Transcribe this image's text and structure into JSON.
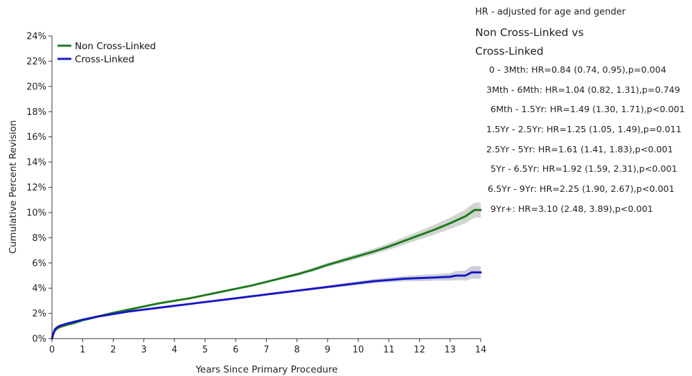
{
  "chart_data": {
    "type": "line",
    "xlabel": "Years Since Primary Procedure",
    "ylabel": "Cumulative Percent Revision",
    "xlim": [
      0,
      14
    ],
    "ylim": [
      0,
      24
    ],
    "x_ticks": [
      "0",
      "1",
      "2",
      "3",
      "4",
      "5",
      "6",
      "7",
      "8",
      "9",
      "10",
      "11",
      "12",
      "13",
      "14"
    ],
    "y_ticks": [
      "0%",
      "2%",
      "4%",
      "6%",
      "8%",
      "10%",
      "12%",
      "14%",
      "16%",
      "18%",
      "20%",
      "22%",
      "24%"
    ],
    "grid": false,
    "legend_position": "top-left",
    "series": [
      {
        "name": "Non Cross-Linked",
        "color": "#1e7a1e",
        "band_color": "#c9cfc9",
        "x": [
          0,
          0.05,
          0.1,
          0.2,
          0.3,
          0.5,
          0.75,
          1,
          1.5,
          2,
          2.5,
          3,
          3.5,
          4,
          4.5,
          5,
          5.5,
          6,
          6.5,
          7,
          7.5,
          8,
          8.5,
          9,
          9.5,
          10,
          10.5,
          11,
          11.5,
          12,
          12.5,
          13,
          13.5,
          13.8,
          14
        ],
        "y": [
          0,
          0.4,
          0.65,
          0.85,
          0.95,
          1.1,
          1.25,
          1.45,
          1.75,
          2.05,
          2.3,
          2.55,
          2.8,
          3.0,
          3.2,
          3.45,
          3.7,
          3.95,
          4.2,
          4.5,
          4.8,
          5.1,
          5.45,
          5.85,
          6.2,
          6.55,
          6.9,
          7.3,
          7.75,
          8.2,
          8.65,
          9.15,
          9.7,
          10.2,
          10.2
        ],
        "lower": [
          0,
          0.35,
          0.6,
          0.8,
          0.9,
          1.05,
          1.2,
          1.4,
          1.7,
          2.0,
          2.25,
          2.5,
          2.75,
          2.95,
          3.15,
          3.4,
          3.64,
          3.88,
          4.12,
          4.41,
          4.7,
          4.98,
          5.31,
          5.69,
          6.02,
          6.35,
          6.67,
          7.04,
          7.45,
          7.86,
          8.26,
          8.7,
          9.15,
          9.6,
          9.6
        ],
        "upper": [
          0,
          0.45,
          0.7,
          0.9,
          1.0,
          1.15,
          1.3,
          1.5,
          1.8,
          2.1,
          2.35,
          2.6,
          2.85,
          3.05,
          3.25,
          3.5,
          3.76,
          4.02,
          4.28,
          4.59,
          4.9,
          5.22,
          5.59,
          6.01,
          6.38,
          6.75,
          7.13,
          7.56,
          8.05,
          8.54,
          9.04,
          9.6,
          10.25,
          10.8,
          10.8
        ]
      },
      {
        "name": "Cross-Linked",
        "color": "#1717c4",
        "band_color": "#c6c6d6",
        "x": [
          0,
          0.05,
          0.1,
          0.2,
          0.3,
          0.5,
          0.75,
          1,
          1.5,
          2,
          2.5,
          3,
          3.5,
          4,
          4.5,
          5,
          5.5,
          6,
          6.5,
          7,
          7.5,
          8,
          8.5,
          9,
          9.5,
          10,
          10.5,
          11,
          11.5,
          12,
          12.5,
          13,
          13.2,
          13.5,
          13.7,
          14
        ],
        "y": [
          0,
          0.45,
          0.75,
          0.95,
          1.05,
          1.2,
          1.35,
          1.5,
          1.75,
          1.95,
          2.15,
          2.3,
          2.45,
          2.6,
          2.75,
          2.9,
          3.05,
          3.2,
          3.35,
          3.5,
          3.65,
          3.8,
          3.95,
          4.1,
          4.25,
          4.4,
          4.55,
          4.65,
          4.75,
          4.8,
          4.85,
          4.9,
          5.0,
          5.0,
          5.25,
          5.25
        ],
        "lower": [
          0,
          0.4,
          0.7,
          0.9,
          1.0,
          1.15,
          1.3,
          1.45,
          1.7,
          1.9,
          2.1,
          2.25,
          2.4,
          2.55,
          2.7,
          2.85,
          3.0,
          3.14,
          3.29,
          3.43,
          3.57,
          3.71,
          3.85,
          3.99,
          4.12,
          4.25,
          4.38,
          4.46,
          4.54,
          4.56,
          4.59,
          4.6,
          4.64,
          4.6,
          4.75,
          4.75
        ],
        "upper": [
          0,
          0.5,
          0.8,
          1.0,
          1.1,
          1.25,
          1.4,
          1.55,
          1.8,
          2.0,
          2.2,
          2.35,
          2.5,
          2.65,
          2.8,
          2.95,
          3.1,
          3.26,
          3.41,
          3.57,
          3.73,
          3.89,
          4.05,
          4.21,
          4.38,
          4.55,
          4.72,
          4.84,
          4.96,
          5.04,
          5.11,
          5.2,
          5.36,
          5.4,
          5.75,
          5.75
        ]
      }
    ],
    "annotations": {
      "note": "HR - adjusted for age and gender",
      "heading_line1": "Non Cross-Linked vs",
      "heading_line2": "Cross-Linked",
      "hr_rows": [
        "0 - 3Mth: HR=0.84 (0.74, 0.95),p=0.004",
        "3Mth - 6Mth: HR=1.04 (0.82, 1.31),p=0.749",
        "6Mth - 1.5Yr: HR=1.49 (1.30, 1.71),p<0.001",
        "1.5Yr - 2.5Yr: HR=1.25 (1.05, 1.49),p=0.011",
        "2.5Yr - 5Yr: HR=1.61 (1.41, 1.83),p<0.001",
        "5Yr - 6.5Yr: HR=1.92 (1.59, 2.31),p<0.001",
        "6.5Yr - 9Yr: HR=2.25 (1.90, 2.67),p<0.001",
        "9Yr+: HR=3.10 (2.48, 3.89),p<0.001"
      ]
    }
  }
}
